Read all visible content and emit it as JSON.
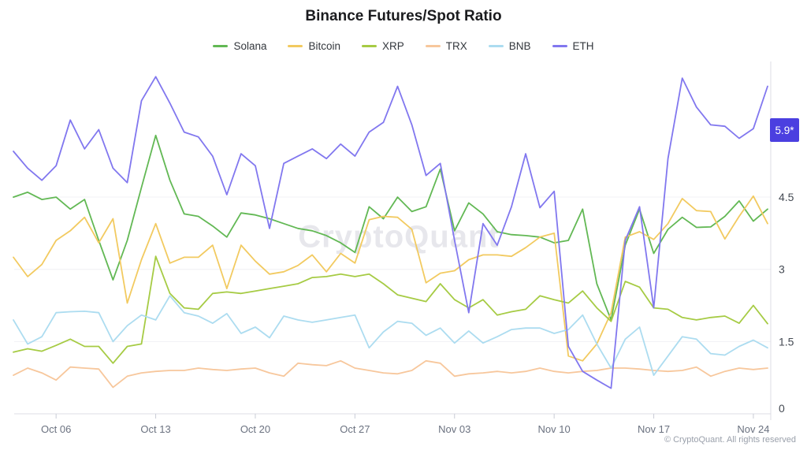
{
  "title": "Binance Futures/Spot Ratio",
  "watermark": "CryptoQuant",
  "footer": "© CryptoQuant. All rights reserved",
  "badge": {
    "label": "5.9*",
    "value": 5.9,
    "color": "#4b3fe0"
  },
  "chart_data": {
    "type": "line",
    "title": "Binance Futures/Spot Ratio",
    "xlabel": "",
    "ylabel": "",
    "ylim": [
      0,
      7.3
    ],
    "grid": "horizontal",
    "legend_position": "top",
    "y_ticks": [
      0,
      1.5,
      3,
      4.5
    ],
    "y_tick_labels": [
      "0",
      "1.5",
      "3",
      "4.5"
    ],
    "x": [
      "Oct 03",
      "Oct 04",
      "Oct 05",
      "Oct 06",
      "Oct 07",
      "Oct 08",
      "Oct 09",
      "Oct 10",
      "Oct 11",
      "Oct 12",
      "Oct 13",
      "Oct 14",
      "Oct 15",
      "Oct 16",
      "Oct 17",
      "Oct 18",
      "Oct 19",
      "Oct 20",
      "Oct 21",
      "Oct 22",
      "Oct 23",
      "Oct 24",
      "Oct 25",
      "Oct 26",
      "Oct 27",
      "Oct 28",
      "Oct 29",
      "Oct 30",
      "Oct 31",
      "Nov 01",
      "Nov 02",
      "Nov 03",
      "Nov 04",
      "Nov 05",
      "Nov 06",
      "Nov 07",
      "Nov 08",
      "Nov 09",
      "Nov 10",
      "Nov 11",
      "Nov 12",
      "Nov 13",
      "Nov 14",
      "Nov 15",
      "Nov 16",
      "Nov 17",
      "Nov 18",
      "Nov 19",
      "Nov 20",
      "Nov 21",
      "Nov 22",
      "Nov 23",
      "Nov 24",
      "Nov 25"
    ],
    "x_ticks": [
      {
        "index": 3,
        "label": "Oct 06"
      },
      {
        "index": 10,
        "label": "Oct 13"
      },
      {
        "index": 17,
        "label": "Oct 20"
      },
      {
        "index": 24,
        "label": "Oct 27"
      },
      {
        "index": 31,
        "label": "Nov 03"
      },
      {
        "index": 38,
        "label": "Nov 10"
      },
      {
        "index": 45,
        "label": "Nov 17"
      },
      {
        "index": 52,
        "label": "Nov 24"
      }
    ],
    "series": [
      {
        "name": "Solana",
        "color": "#62b854",
        "values": [
          4.5,
          4.6,
          4.45,
          4.5,
          4.25,
          4.45,
          3.6,
          2.78,
          3.6,
          4.7,
          5.78,
          4.85,
          4.15,
          4.1,
          3.9,
          3.67,
          4.17,
          4.13,
          4.05,
          3.95,
          3.85,
          3.8,
          3.7,
          3.55,
          3.35,
          4.3,
          4.05,
          4.5,
          4.2,
          4.3,
          5.08,
          3.8,
          4.38,
          4.15,
          3.78,
          3.72,
          3.7,
          3.67,
          3.55,
          3.6,
          4.25,
          2.7,
          1.95,
          3.5,
          4.25,
          3.33,
          3.83,
          4.08,
          3.87,
          3.88,
          4.1,
          4.42,
          4.0,
          4.25
        ]
      },
      {
        "name": "Bitcoin",
        "color": "#f2ca60",
        "values": [
          3.25,
          2.85,
          3.1,
          3.6,
          3.8,
          4.08,
          3.55,
          4.05,
          2.3,
          3.2,
          3.95,
          3.13,
          3.25,
          3.25,
          3.5,
          2.6,
          3.5,
          3.17,
          2.9,
          2.95,
          3.08,
          3.3,
          2.95,
          3.33,
          3.13,
          4.03,
          4.1,
          4.08,
          3.83,
          2.72,
          2.92,
          2.97,
          3.2,
          3.3,
          3.3,
          3.27,
          3.45,
          3.67,
          3.75,
          1.2,
          1.1,
          1.45,
          2.1,
          3.67,
          3.78,
          3.62,
          3.95,
          4.47,
          4.22,
          4.2,
          3.63,
          4.1,
          4.52,
          3.95
        ]
      },
      {
        "name": "XRP",
        "color": "#a6cb44",
        "values": [
          1.28,
          1.35,
          1.3,
          1.42,
          1.55,
          1.4,
          1.4,
          1.05,
          1.4,
          1.45,
          3.27,
          2.5,
          2.2,
          2.17,
          2.5,
          2.53,
          2.5,
          2.55,
          2.6,
          2.65,
          2.7,
          2.83,
          2.85,
          2.9,
          2.85,
          2.9,
          2.7,
          2.47,
          2.4,
          2.33,
          2.7,
          2.37,
          2.2,
          2.37,
          2.05,
          2.12,
          2.17,
          2.45,
          2.37,
          2.3,
          2.55,
          2.2,
          1.92,
          2.75,
          2.63,
          2.2,
          2.17,
          2.0,
          1.95,
          2.0,
          2.03,
          1.88,
          2.25,
          1.87
        ]
      },
      {
        "name": "TRX",
        "color": "#f7c79c",
        "values": [
          0.8,
          0.95,
          0.85,
          0.7,
          0.97,
          0.95,
          0.93,
          0.55,
          0.78,
          0.85,
          0.88,
          0.9,
          0.9,
          0.95,
          0.92,
          0.9,
          0.93,
          0.95,
          0.85,
          0.78,
          1.05,
          1.02,
          1.0,
          1.1,
          0.95,
          0.9,
          0.85,
          0.83,
          0.9,
          1.1,
          1.05,
          0.78,
          0.83,
          0.85,
          0.88,
          0.85,
          0.88,
          0.95,
          0.88,
          0.85,
          0.88,
          0.9,
          0.95,
          0.95,
          0.93,
          0.9,
          0.88,
          0.9,
          0.97,
          0.78,
          0.88,
          0.95,
          0.92,
          0.95
        ]
      },
      {
        "name": "BNB",
        "color": "#acdcf0",
        "values": [
          1.95,
          1.45,
          1.6,
          2.1,
          2.12,
          2.13,
          2.1,
          1.5,
          1.83,
          2.05,
          1.95,
          2.45,
          2.1,
          2.03,
          1.88,
          2.08,
          1.67,
          1.8,
          1.58,
          2.03,
          1.95,
          1.9,
          1.95,
          2.0,
          2.05,
          1.37,
          1.7,
          1.92,
          1.88,
          1.63,
          1.78,
          1.47,
          1.72,
          1.47,
          1.6,
          1.75,
          1.78,
          1.78,
          1.67,
          1.75,
          2.05,
          1.45,
          0.95,
          1.55,
          1.8,
          0.8,
          1.2,
          1.6,
          1.55,
          1.25,
          1.22,
          1.4,
          1.53,
          1.37
        ]
      },
      {
        "name": "ETH",
        "color": "#8177ef",
        "values": [
          5.45,
          5.1,
          4.85,
          5.15,
          6.1,
          5.5,
          5.9,
          5.1,
          4.8,
          6.5,
          7.0,
          6.45,
          5.85,
          5.75,
          5.35,
          4.55,
          5.4,
          5.15,
          3.85,
          5.2,
          5.35,
          5.5,
          5.3,
          5.6,
          5.35,
          5.85,
          6.05,
          6.8,
          6.0,
          4.95,
          5.2,
          3.6,
          2.1,
          3.95,
          3.5,
          4.3,
          5.4,
          4.28,
          4.62,
          1.4,
          0.88,
          0.7,
          0.53,
          3.6,
          4.3,
          2.2,
          5.3,
          6.97,
          6.37,
          6.0,
          5.97,
          5.72,
          5.92,
          6.8
        ]
      }
    ]
  }
}
